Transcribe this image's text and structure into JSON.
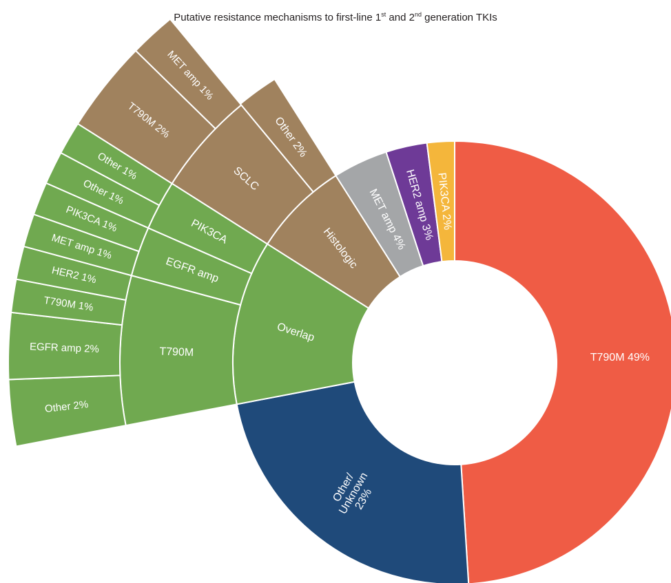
{
  "title": {
    "prefix": "Putative resistance mechanisms to first-line 1",
    "sup1": "st",
    "middle": " and 2",
    "sup2": "nd",
    "suffix": " generation TKIs"
  },
  "colors": {
    "t790m": "#ef5c45",
    "other_unknown": "#1f4a7a",
    "overlap": "#70a950",
    "histologic": "#a0825e",
    "met": "#a4a6a8",
    "her2": "#6e3a97",
    "pik3ca": "#f4b63b",
    "separator": "#ffffff"
  },
  "chart_data": {
    "type": "sunburst",
    "title": "Putative resistance mechanisms to first-line 1st and 2nd generation TKIs",
    "segments": [
      {
        "label": "T790M 49%",
        "value": 49,
        "color_key": "t790m"
      },
      {
        "label": "Other/ Unknown 23%",
        "value": 23,
        "color_key": "other_unknown"
      },
      {
        "label": "Overlap",
        "value": 12,
        "color_key": "overlap",
        "children": [
          {
            "label": "T790M",
            "value": 6,
            "children": [
              {
                "label": "Other 2%",
                "value": 2
              },
              {
                "label": "EGFR amp 2%",
                "value": 2
              },
              {
                "label": "T790M 1%",
                "value": 1
              },
              {
                "label": "HER2 1%",
                "value": 1
              }
            ]
          },
          {
            "label": "EGFR amp",
            "value": 2,
            "children": [
              {
                "label": "MET amp 1%",
                "value": 1
              },
              {
                "label": "PIK3CA 1%",
                "value": 1
              }
            ]
          },
          {
            "label": "PIK3CA",
            "value": 2,
            "children": [
              {
                "label": "Other 1%",
                "value": 1
              },
              {
                "label": "Other 1%",
                "value": 1
              }
            ]
          }
        ]
      },
      {
        "label": "Histologic",
        "value": 7,
        "color_key": "histologic",
        "children": [
          {
            "label": "SCLC",
            "value": 5,
            "children": [
              {
                "label": "T790M 2%",
                "value": 2
              },
              {
                "label": "MET amp 1%",
                "value": 1
              }
            ]
          },
          {
            "label": "Other 2%",
            "value": 2
          }
        ]
      },
      {
        "label": "MET amp 4%",
        "value": 4,
        "color_key": "met"
      },
      {
        "label": "HER2 amp 3%",
        "value": 3,
        "color_key": "her2"
      },
      {
        "label": "PIK3CA 2%",
        "value": 2,
        "color_key": "pik3ca"
      }
    ]
  }
}
